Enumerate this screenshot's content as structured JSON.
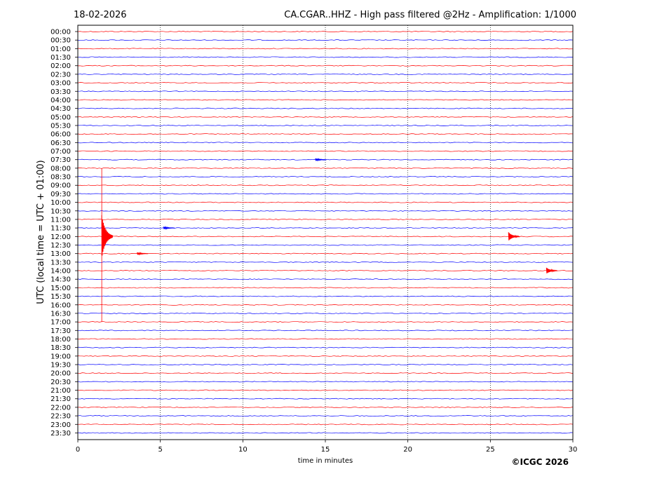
{
  "chart_data": {
    "type": "line",
    "date": "18-02-2026",
    "title": "CA.CGAR..HHZ - High pass filtered @2Hz - Amplification: 1/1000",
    "xlabel": "time in minutes",
    "ylabel": "UTC (local time = UTC + 01:00)",
    "copyright": "©ICGC 2026",
    "xlim": [
      0,
      30
    ],
    "x_ticks": [
      "0",
      "5",
      "10",
      "15",
      "20",
      "25",
      "30"
    ],
    "x_tick_values": [
      0,
      5,
      10,
      15,
      20,
      25,
      30
    ],
    "grid": "vertical dotted lines at every 5 minutes",
    "trace_colors": [
      "#ff0000",
      "#0000ff"
    ],
    "rows": [
      "00:00",
      "00:30",
      "01:00",
      "01:30",
      "02:00",
      "02:30",
      "03:00",
      "03:30",
      "04:00",
      "04:30",
      "05:00",
      "05:30",
      "06:00",
      "06:30",
      "07:00",
      "07:30",
      "08:00",
      "08:30",
      "09:00",
      "09:30",
      "10:00",
      "10:30",
      "11:00",
      "11:30",
      "12:00",
      "12:30",
      "13:00",
      "13:30",
      "14:00",
      "14:30",
      "15:00",
      "15:30",
      "16:00",
      "16:30",
      "17:00",
      "17:30",
      "18:00",
      "18:30",
      "19:00",
      "19:30",
      "20:00",
      "20:30",
      "21:00",
      "21:30",
      "22:00",
      "22:30",
      "23:00",
      "23:30"
    ],
    "events": [
      {
        "row": "12:00",
        "minute": 1.45,
        "amplitude_rows": 2.5,
        "type": "large earthquake",
        "extent_rows_up": 8,
        "extent_rows_down": 10
      },
      {
        "row": "12:00",
        "minute": 26.1,
        "amplitude_rows": 0.5,
        "type": "local event"
      },
      {
        "row": "14:00",
        "minute": 28.4,
        "amplitude_rows": 0.35,
        "type": "local event"
      },
      {
        "row": "11:30",
        "minute": 5.2,
        "amplitude_rows": 0.15,
        "type": "noise burst"
      },
      {
        "row": "13:00",
        "minute": 3.6,
        "amplitude_rows": 0.15,
        "type": "noise burst"
      },
      {
        "row": "07:30",
        "minute": 14.4,
        "amplitude_rows": 0.15,
        "type": "noise burst"
      }
    ]
  }
}
